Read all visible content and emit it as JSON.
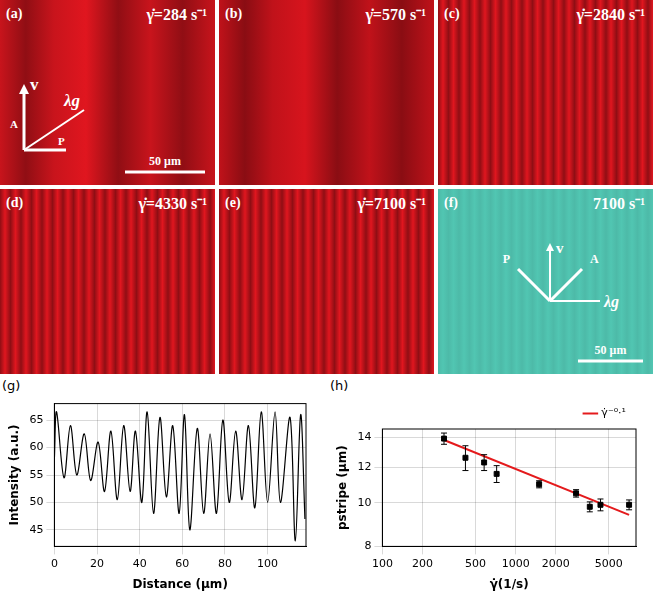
{
  "panels": [
    {
      "label": "(a)",
      "title": "γ̇=284 s⁻¹",
      "color": "#c8141c",
      "axes": {
        "velocity": "v",
        "analyzer": "A",
        "polarizer": "P",
        "wavevector": "λg"
      },
      "scale_bar": "50 μm"
    },
    {
      "label": "(b)",
      "title": "γ̇=570 s⁻¹",
      "color": "#c0121a"
    },
    {
      "label": "(c)",
      "title": "γ̇=2840 s⁻¹",
      "color": "#c8141c"
    },
    {
      "label": "(d)",
      "title": "γ̇=4330 s⁻¹",
      "color": "#c8141c"
    },
    {
      "label": "(e)",
      "title": "γ̇=7100 s⁻¹",
      "color": "#c8141c"
    },
    {
      "label": "(f)",
      "title": "7100 s⁻¹",
      "color": "#4fc0ad",
      "axes": {
        "velocity": "v",
        "analyzer": "A",
        "polarizer": "P",
        "wavevector": "λg"
      },
      "scale_bar": "50 μm"
    }
  ],
  "chart_data": [
    {
      "type": "line",
      "label": "(g)",
      "x_label": "Distance (μm)",
      "y_label": "Intensity (a.u.)",
      "xlim": [
        0,
        118
      ],
      "ylim": [
        42,
        68
      ],
      "xticks": [
        0,
        20,
        40,
        60,
        80,
        100
      ],
      "yticks": [
        45,
        50,
        55,
        60,
        65
      ],
      "grid": true,
      "color": "#000000",
      "line_style": "solid",
      "x": [
        0,
        1,
        4.5,
        7.5,
        10.5,
        14,
        17,
        20.5,
        23.5,
        26.5,
        29.5,
        32.5,
        35.5,
        38,
        41,
        43.5,
        46.5,
        49.5,
        52.5,
        55.5,
        58.5,
        61,
        63.5,
        67,
        70,
        73,
        76,
        79,
        82,
        85,
        88,
        91,
        94,
        97,
        100,
        103.5,
        106,
        110.5,
        113,
        115.5,
        117.5
      ],
      "values": [
        58,
        66.5,
        54.5,
        64,
        55,
        62.5,
        54,
        61,
        52,
        63,
        50.5,
        64,
        52,
        63,
        50,
        66.5,
        48,
        65.5,
        51,
        64,
        48,
        66,
        45,
        63.5,
        48,
        62.5,
        48,
        65,
        50,
        63,
        50.5,
        64,
        49,
        66.5,
        50,
        66.5,
        50,
        65.5,
        43,
        66,
        47
      ]
    },
    {
      "type": "scatter",
      "label": "(h)",
      "x_label": "γ̇(1/s)",
      "y_label": "pstripe (μm)",
      "log": true,
      "xlim": [
        100,
        8000
      ],
      "ylim": [
        8,
        14.6
      ],
      "xticks": [
        100,
        200,
        500,
        1000,
        2000,
        5000
      ],
      "yticks": [
        8,
        10,
        12,
        14
      ],
      "grid": true,
      "legend": "top right",
      "series": [
        {
          "x": [
            290,
            420,
            580,
            720,
            1500,
            2840,
            3600,
            4330,
            7100
          ],
          "values": [
            13.9,
            12.6,
            12.3,
            11.6,
            11.0,
            10.5,
            9.8,
            9.9,
            9.9
          ],
          "errors": [
            0.4,
            0.8,
            0.5,
            0.5,
            0.2,
            0.2,
            0.25,
            0.3,
            0.25
          ],
          "color": "#000000",
          "marker": "square"
        },
        {
          "name": "γ̇⁻⁰·¹",
          "type": "line",
          "x": [
            290,
            7100
          ],
          "values": [
            13.8,
            9.4
          ],
          "color": "#e41a1c",
          "line_style": "solid"
        }
      ]
    }
  ]
}
